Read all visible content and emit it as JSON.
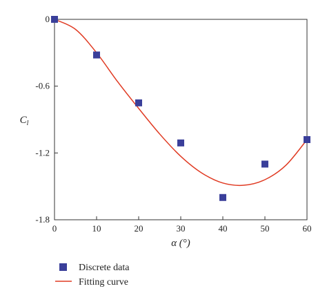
{
  "chart_data": {
    "type": "scatter",
    "title": "",
    "xlabel": "α (°)",
    "ylabel": "Cl",
    "xlim": [
      0,
      60
    ],
    "ylim": [
      -1.8,
      0
    ],
    "x_ticks": [
      "0",
      "10",
      "20",
      "30",
      "40",
      "50",
      "60"
    ],
    "y_ticks": [
      "0",
      "-0.6",
      "-1.2",
      "-1.8"
    ],
    "grid": false,
    "legend_position": "bottom-left, below plot",
    "series": [
      {
        "name": "Discrete data",
        "type": "scatter",
        "marker": "square",
        "color": "#3a3f9a",
        "x": [
          0,
          10,
          20,
          30,
          40,
          50,
          60
        ],
        "y": [
          0,
          -0.32,
          -0.75,
          -1.11,
          -1.6,
          -1.3,
          -1.08
        ]
      },
      {
        "name": "Fitting curve",
        "type": "line",
        "color": "#e03a22",
        "x": [
          0,
          5,
          10,
          15,
          20,
          25,
          30,
          35,
          40,
          45,
          50,
          55,
          60
        ],
        "y": [
          0,
          -0.09,
          -0.3,
          -0.56,
          -0.8,
          -1.03,
          -1.23,
          -1.38,
          -1.47,
          -1.49,
          -1.44,
          -1.31,
          -1.08
        ]
      }
    ]
  }
}
